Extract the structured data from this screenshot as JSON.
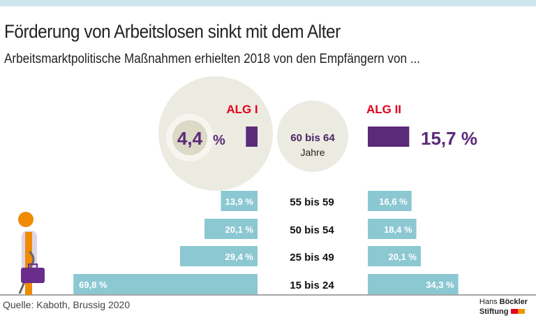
{
  "title": "Förderung von Arbeitslosen sinkt mit dem Alter",
  "subtitle": "Arbeitsmarktpolitische Maßnahmen erhielten 2018 von den Empfängern von ...",
  "source": "Quelle: Kaboth, Brussig 2020",
  "logo": {
    "line1a": "Hans",
    "line1b": "Böckler",
    "line2": "Stiftung"
  },
  "colors": {
    "highlight": "#5b2a78",
    "bar": "#8cc8d2",
    "series_label": "#e3001b",
    "circle": "#ecebe1"
  },
  "chart_data": {
    "type": "bar",
    "orientation": "horizontal-butterfly",
    "categories": [
      "60 bis 64",
      "55 bis 59",
      "50 bis 54",
      "25 bis 49",
      "15 bis 24"
    ],
    "category_suffix": {
      "60 bis 64": "Jahre"
    },
    "series": [
      {
        "name": "ALG I",
        "values": [
          4.4,
          13.9,
          20.1,
          29.4,
          69.8
        ],
        "labels": [
          "4,4 %",
          "13,9 %",
          "20,1 %",
          "29,4 %",
          "69,8 %"
        ]
      },
      {
        "name": "ALG II",
        "values": [
          15.7,
          16.6,
          18.4,
          20.1,
          34.3
        ],
        "labels": [
          "15,7 %",
          "16,6 %",
          "18,4 %",
          "20,1 %",
          "34,3 %"
        ]
      }
    ],
    "unit": "%",
    "highlighted_category": "60 bis 64"
  }
}
